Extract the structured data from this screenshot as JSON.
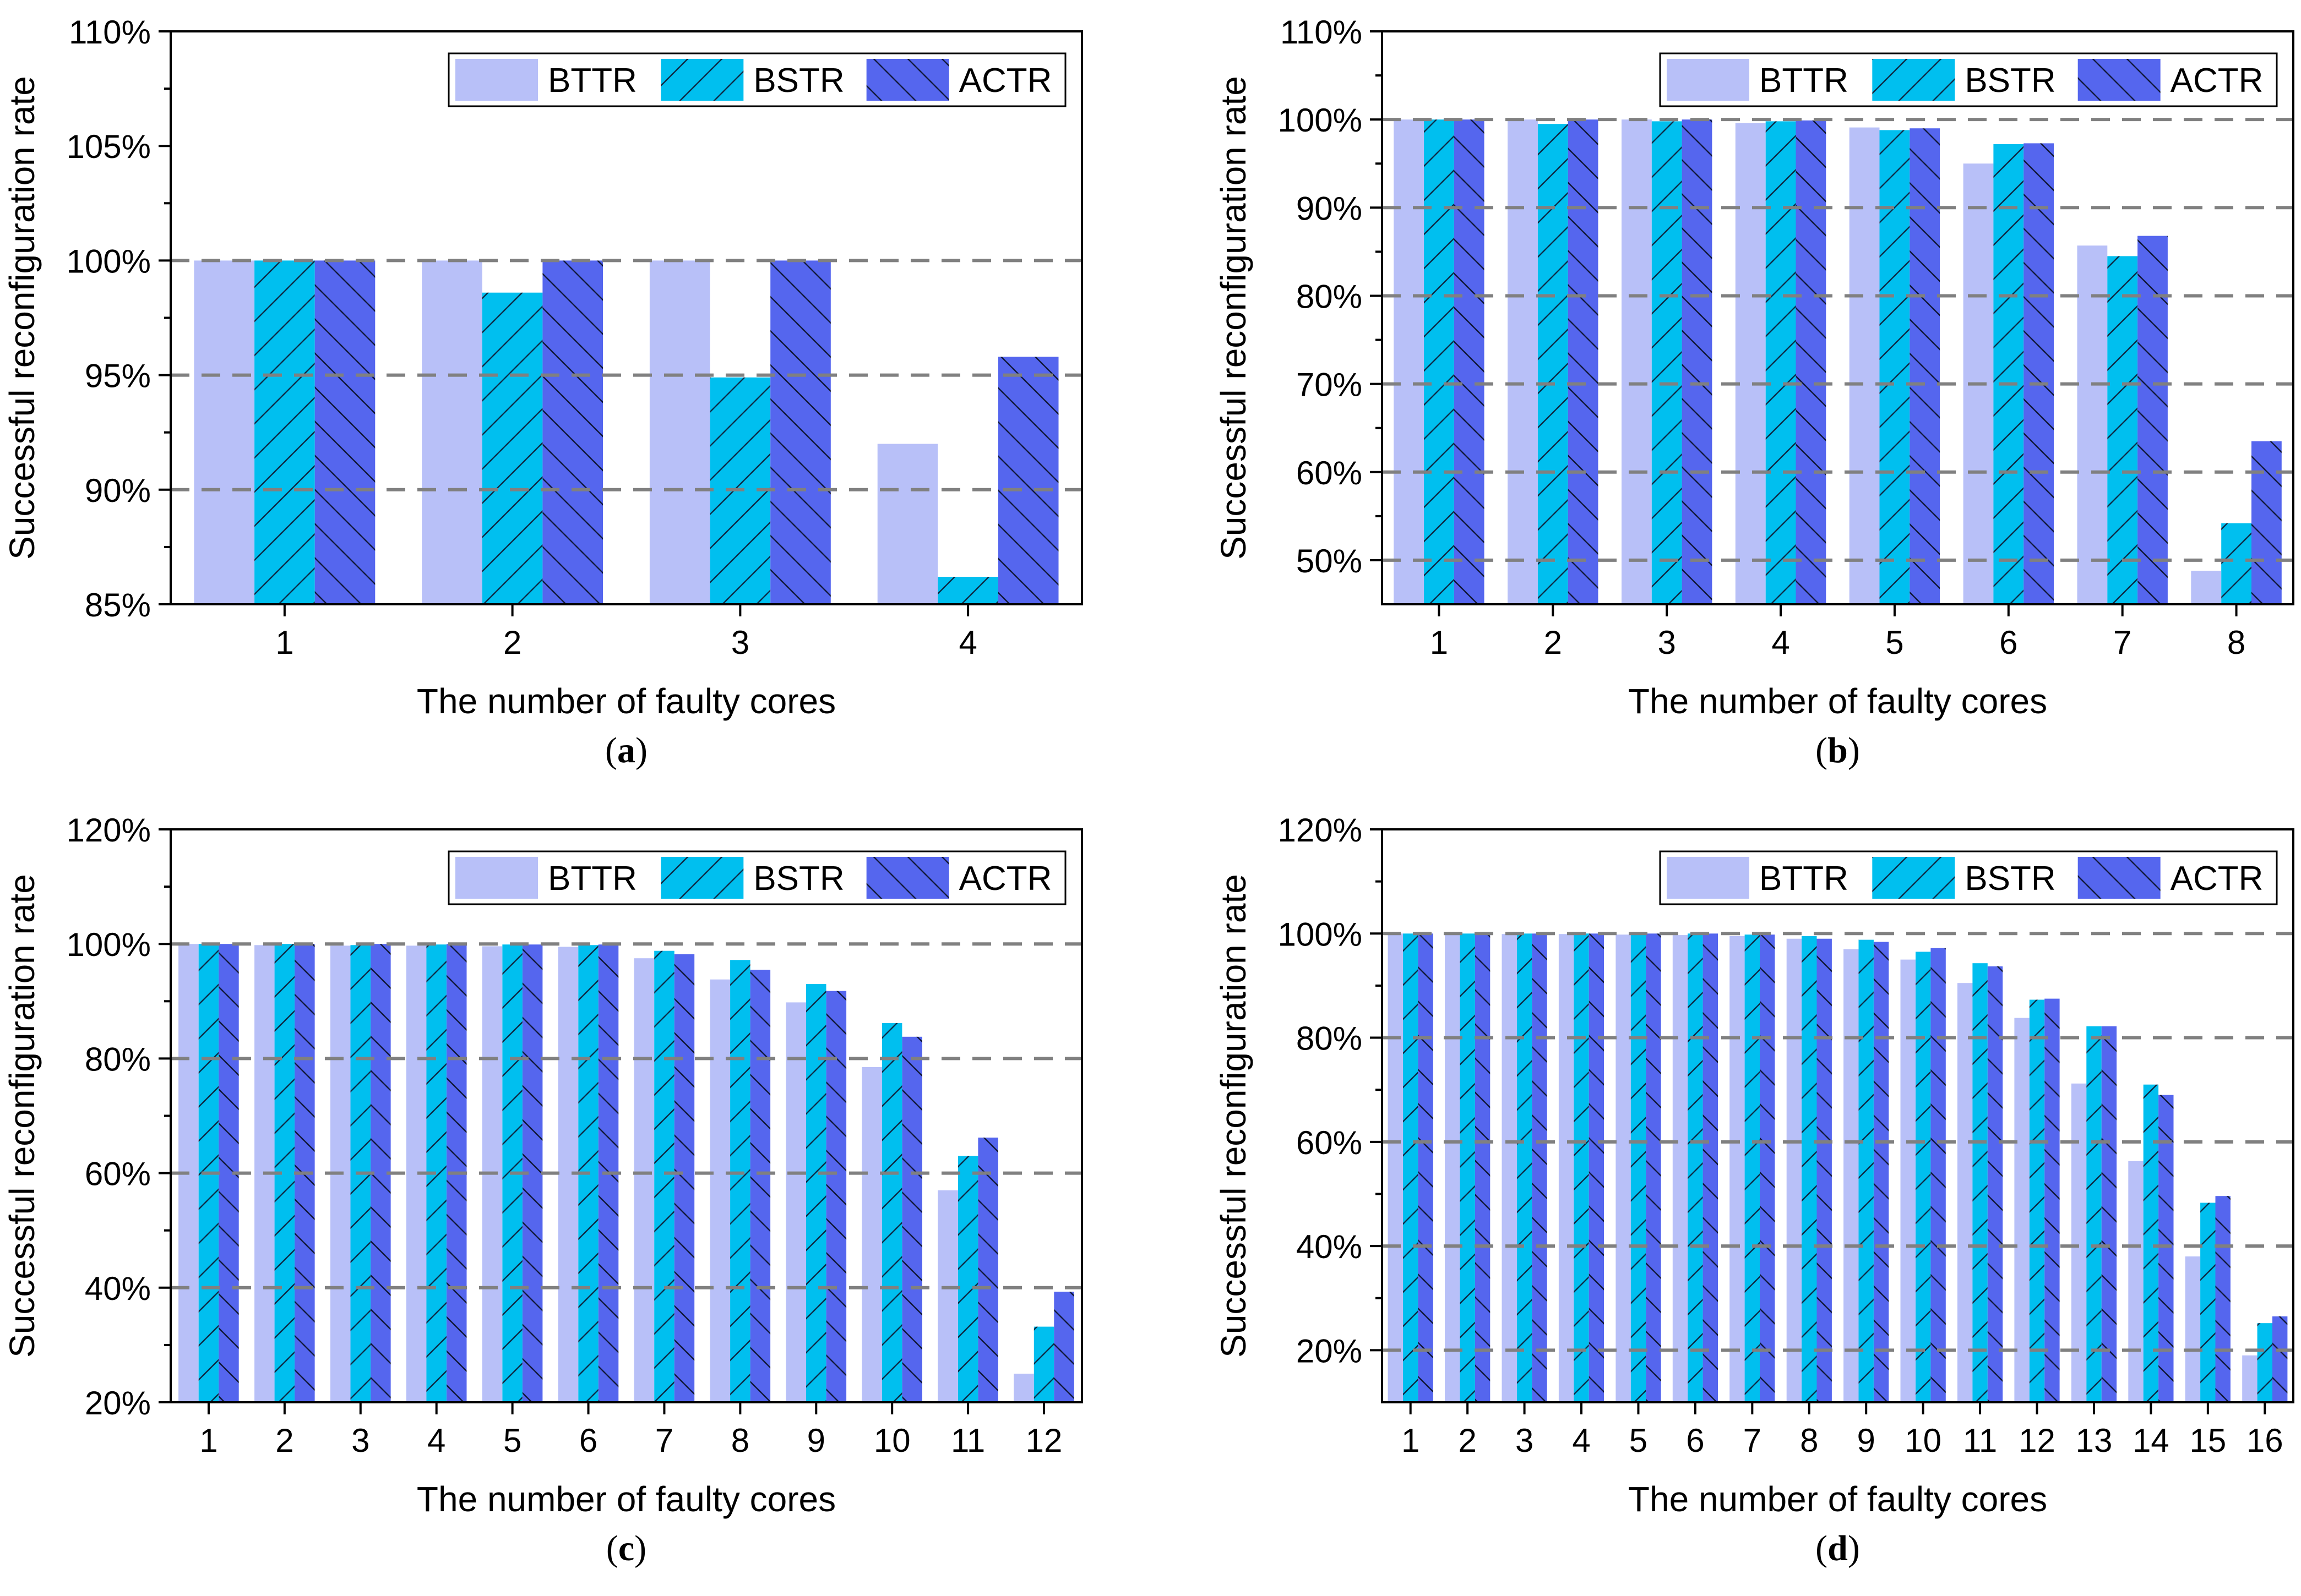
{
  "colors": {
    "BTTR": "#b8c0f8",
    "BSTR": "#00bfef",
    "ACTR": "#5566ee",
    "grid": "#808080",
    "axis": "#000000"
  },
  "chart_data": [
    {
      "type": "bar",
      "caption": "(a)",
      "caption_letter": "a",
      "xlabel": "The number of faulty cores",
      "ylabel": "Successful reconfiguration rate",
      "categories": [
        "1",
        "2",
        "3",
        "4"
      ],
      "ylim": [
        85,
        110
      ],
      "yticks": [
        85,
        90,
        95,
        100,
        105,
        110
      ],
      "ytick_labels": [
        "85%",
        "90%",
        "95%",
        "100%",
        "105%",
        "110%"
      ],
      "grid_lines": [
        90,
        95,
        100
      ],
      "legend": [
        "BTTR",
        "BSTR",
        "ACTR"
      ],
      "legend_position": "top-right",
      "series": [
        {
          "name": "BTTR",
          "values": [
            100,
            100,
            100,
            92.0
          ]
        },
        {
          "name": "BSTR",
          "values": [
            100,
            98.6,
            94.9,
            86.2
          ]
        },
        {
          "name": "ACTR",
          "values": [
            100,
            100,
            100,
            95.8
          ]
        }
      ]
    },
    {
      "type": "bar",
      "caption": "(b)",
      "caption_letter": "b",
      "xlabel": "The number of faulty cores",
      "ylabel": "Successful reconfiguration rate",
      "categories": [
        "1",
        "2",
        "3",
        "4",
        "5",
        "6",
        "7",
        "8"
      ],
      "ylim": [
        45,
        110
      ],
      "yticks": [
        50,
        60,
        70,
        80,
        90,
        100,
        110
      ],
      "ytick_labels": [
        "50%",
        "60%",
        "70%",
        "80%",
        "90%",
        "100%",
        "110%"
      ],
      "grid_lines": [
        50,
        60,
        70,
        80,
        90,
        100
      ],
      "legend": [
        "BTTR",
        "BSTR",
        "ACTR"
      ],
      "legend_position": "top-right",
      "series": [
        {
          "name": "BTTR",
          "values": [
            100,
            100,
            100,
            99.6,
            99.1,
            95.0,
            85.7,
            48.8
          ]
        },
        {
          "name": "BSTR",
          "values": [
            100,
            99.5,
            99.8,
            99.8,
            98.8,
            97.2,
            84.5,
            54.2
          ]
        },
        {
          "name": "ACTR",
          "values": [
            100,
            100,
            100,
            99.9,
            99.0,
            97.3,
            86.8,
            63.5
          ]
        }
      ]
    },
    {
      "type": "bar",
      "caption": "(c)",
      "caption_letter": "c",
      "xlabel": "The number of faulty cores",
      "ylabel": "Successful reconfiguration rate",
      "categories": [
        "1",
        "2",
        "3",
        "4",
        "5",
        "6",
        "7",
        "8",
        "9",
        "10",
        "11",
        "12"
      ],
      "ylim": [
        20,
        120
      ],
      "yticks": [
        20,
        40,
        60,
        80,
        100,
        120
      ],
      "ytick_labels": [
        "20%",
        "40%",
        "60%",
        "80%",
        "100%",
        "120%"
      ],
      "grid_lines": [
        40,
        60,
        80,
        100
      ],
      "legend": [
        "BTTR",
        "BSTR",
        "ACTR"
      ],
      "legend_position": "top-right",
      "series": [
        {
          "name": "BTTR",
          "values": [
            100,
            99.8,
            99.7,
            99.7,
            99.6,
            99.5,
            97.5,
            93.8,
            89.8,
            78.5,
            57.0,
            25.0
          ]
        },
        {
          "name": "BSTR",
          "values": [
            100,
            100,
            99.8,
            99.9,
            99.9,
            99.8,
            98.8,
            97.2,
            93.0,
            86.2,
            63.0,
            33.2
          ]
        },
        {
          "name": "ACTR",
          "values": [
            100,
            100,
            100,
            100,
            99.9,
            99.9,
            98.2,
            95.5,
            91.8,
            83.8,
            66.2,
            39.3
          ]
        }
      ]
    },
    {
      "type": "bar",
      "caption": "(d)",
      "caption_letter": "d",
      "xlabel": "The number of faulty cores",
      "ylabel": "Successful reconfiguration rate",
      "categories": [
        "1",
        "2",
        "3",
        "4",
        "5",
        "6",
        "7",
        "8",
        "9",
        "10",
        "11",
        "12",
        "13",
        "14",
        "15",
        "16"
      ],
      "ylim": [
        10,
        120
      ],
      "yticks": [
        20,
        40,
        60,
        80,
        100,
        120
      ],
      "ytick_labels": [
        "20%",
        "40%",
        "60%",
        "80%",
        "100%",
        "120%"
      ],
      "grid_lines": [
        20,
        40,
        60,
        80,
        100
      ],
      "legend": [
        "BTTR",
        "BSTR",
        "ACTR"
      ],
      "legend_position": "top-right",
      "series": [
        {
          "name": "BTTR",
          "values": [
            100,
            100,
            99.9,
            99.9,
            99.8,
            99.7,
            99.5,
            99.0,
            97.0,
            95.0,
            90.5,
            83.8,
            71.2,
            56.3,
            38.0,
            19.0
          ]
        },
        {
          "name": "BSTR",
          "values": [
            100,
            100,
            100,
            100,
            100,
            100,
            99.8,
            99.5,
            98.8,
            96.5,
            94.3,
            87.3,
            82.2,
            71.0,
            48.3,
            25.2
          ]
        },
        {
          "name": "ACTR",
          "values": [
            100,
            100,
            100,
            100,
            100,
            100,
            99.8,
            99.0,
            98.4,
            97.2,
            93.7,
            87.5,
            82.2,
            69.0,
            49.6,
            26.5
          ]
        }
      ]
    }
  ]
}
